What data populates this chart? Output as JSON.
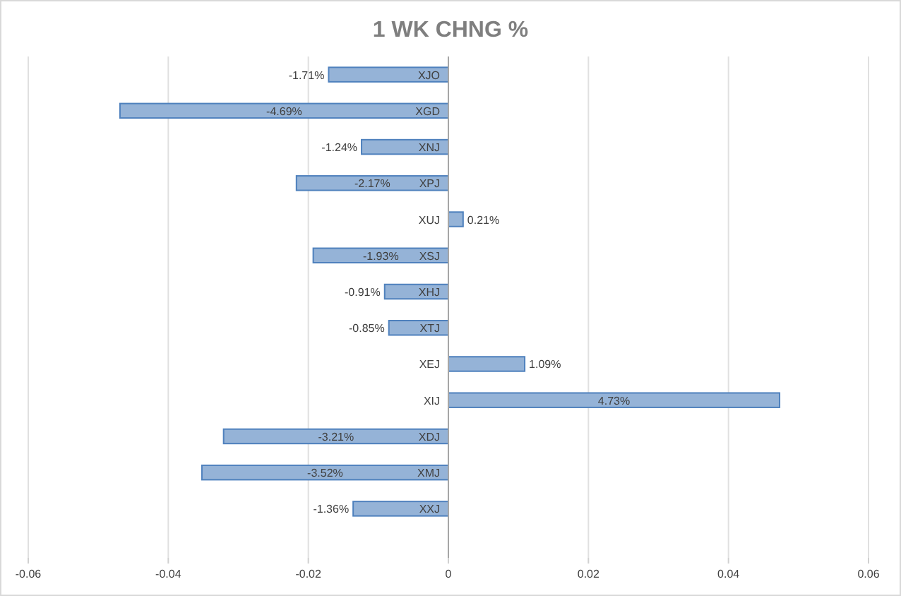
{
  "chart_data": {
    "type": "bar",
    "orientation": "horizontal",
    "title": "1 WK CHNG %",
    "categories": [
      "XJO",
      "XGD",
      "XNJ",
      "XPJ",
      "XUJ",
      "XSJ",
      "XHJ",
      "XTJ",
      "XEJ",
      "XIJ",
      "XDJ",
      "XMJ",
      "XXJ"
    ],
    "values": [
      -0.0171,
      -0.0469,
      -0.0124,
      -0.0217,
      0.0021,
      -0.0193,
      -0.0091,
      -0.0085,
      0.0109,
      0.0473,
      -0.0321,
      -0.0352,
      -0.0136
    ],
    "value_labels": [
      "-1.71%",
      "-4.69%",
      "-1.24%",
      "-2.17%",
      "0.21%",
      "-1.93%",
      "-0.91%",
      "-0.85%",
      "1.09%",
      "4.73%",
      "-3.21%",
      "-3.52%",
      "-1.36%"
    ],
    "color": "#95b3d7",
    "xlim": [
      -0.06,
      0.06
    ],
    "xticks": [
      -0.06,
      -0.04,
      -0.02,
      0,
      0.02,
      0.04,
      0.06
    ],
    "grid": "x"
  }
}
